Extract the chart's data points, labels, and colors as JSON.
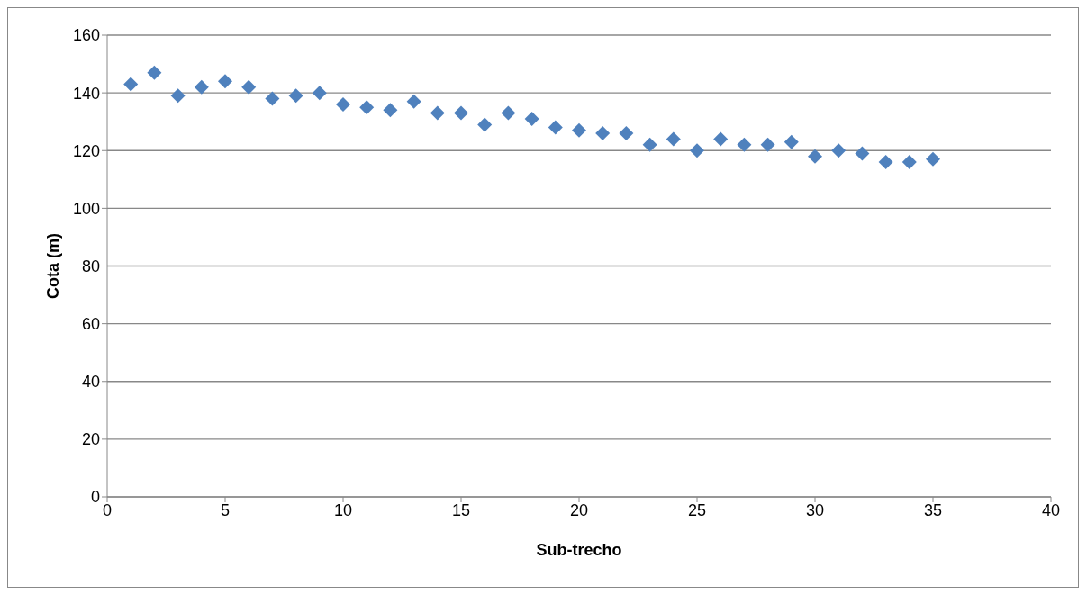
{
  "chart_data": {
    "type": "scatter",
    "xlabel": "Sub-trecho",
    "ylabel": "Cota (m)",
    "x": [
      1,
      2,
      3,
      4,
      5,
      6,
      7,
      8,
      9,
      10,
      11,
      12,
      13,
      14,
      15,
      16,
      17,
      18,
      19,
      20,
      21,
      22,
      23,
      24,
      25,
      26,
      27,
      28,
      29,
      30,
      31,
      32,
      33,
      34,
      35
    ],
    "series": [
      {
        "color": "#4f81bd",
        "values": [
          143,
          147,
          139,
          142,
          144,
          142,
          138,
          139,
          140,
          136,
          135,
          134,
          137,
          133,
          133,
          129,
          133,
          131,
          128,
          127,
          126,
          126,
          122,
          124,
          120,
          124,
          122,
          122,
          123,
          118,
          120,
          119,
          116,
          116,
          117
        ]
      }
    ],
    "xlim": [
      0,
      40
    ],
    "xticks": [
      0,
      5,
      10,
      15,
      20,
      25,
      30,
      35,
      40
    ],
    "ylim": [
      0,
      160
    ],
    "yticks": [
      0,
      20,
      40,
      60,
      80,
      100,
      120,
      140,
      160
    ],
    "grid": "y",
    "marker": "diamond",
    "legend": false
  }
}
